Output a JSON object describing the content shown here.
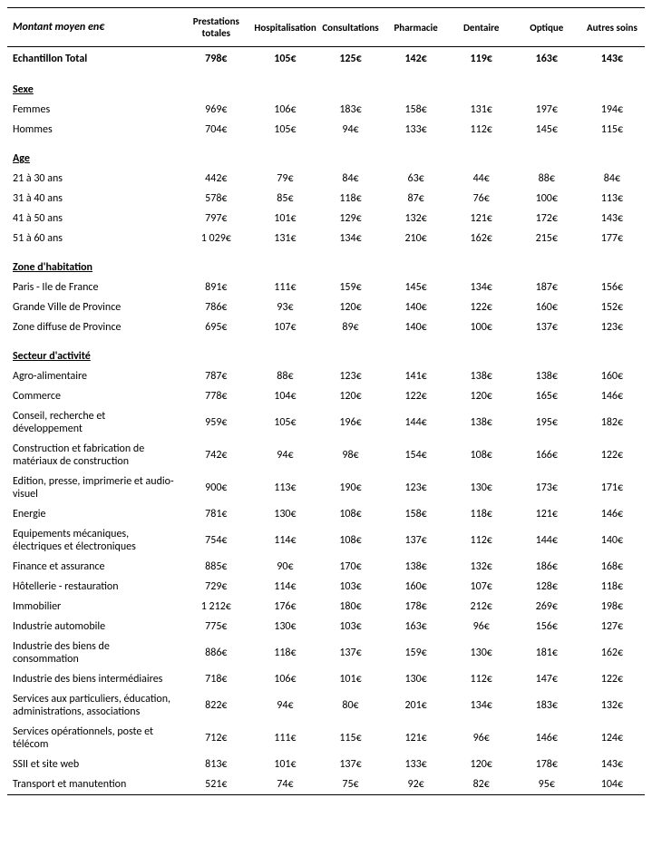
{
  "table": {
    "header_label": "Montant moyen en€",
    "columns": [
      "Prestations totales",
      "Hospitalisation",
      "Consultations",
      "Pharmacie",
      "Dentaire",
      "Optique",
      "Autres soins"
    ],
    "total_row": {
      "label": "Echantillon Total",
      "values": [
        "798€",
        "105€",
        "125€",
        "142€",
        "119€",
        "163€",
        "143€"
      ]
    },
    "sections": [
      {
        "title": "Sexe",
        "rows": [
          {
            "label": "Femmes",
            "values": [
              "969€",
              "106€",
              "183€",
              "158€",
              "131€",
              "197€",
              "194€"
            ]
          },
          {
            "label": "Hommes",
            "values": [
              "704€",
              "105€",
              "94€",
              "133€",
              "112€",
              "145€",
              "115€"
            ]
          }
        ]
      },
      {
        "title": "Age",
        "rows": [
          {
            "label": "21 à 30 ans",
            "values": [
              "442€",
              "79€",
              "84€",
              "63€",
              "44€",
              "88€",
              "84€"
            ]
          },
          {
            "label": "31 à 40 ans",
            "values": [
              "578€",
              "85€",
              "118€",
              "87€",
              "76€",
              "100€",
              "113€"
            ]
          },
          {
            "label": "41 à 50 ans",
            "values": [
              "797€",
              "101€",
              "129€",
              "132€",
              "121€",
              "172€",
              "143€"
            ]
          },
          {
            "label": "51 à 60 ans",
            "values": [
              "1 029€",
              "131€",
              "134€",
              "210€",
              "162€",
              "215€",
              "177€"
            ]
          }
        ]
      },
      {
        "title": "Zone d'habitation",
        "rows": [
          {
            "label": "Paris - Ile de France",
            "values": [
              "891€",
              "111€",
              "159€",
              "145€",
              "134€",
              "187€",
              "156€"
            ]
          },
          {
            "label": "Grande Ville de Province",
            "values": [
              "786€",
              "93€",
              "120€",
              "140€",
              "122€",
              "160€",
              "152€"
            ]
          },
          {
            "label": "Zone diffuse de Province",
            "values": [
              "695€",
              "107€",
              "89€",
              "140€",
              "100€",
              "137€",
              "123€"
            ]
          }
        ]
      },
      {
        "title": "Secteur d'activité",
        "rows": [
          {
            "label": "Agro-alimentaire",
            "values": [
              "787€",
              "88€",
              "123€",
              "141€",
              "138€",
              "138€",
              "160€"
            ]
          },
          {
            "label": "Commerce",
            "values": [
              "778€",
              "104€",
              "120€",
              "122€",
              "120€",
              "165€",
              "146€"
            ]
          },
          {
            "label": "Conseil, recherche et développement",
            "values": [
              "959€",
              "105€",
              "196€",
              "144€",
              "138€",
              "195€",
              "182€"
            ]
          },
          {
            "label": "Construction et fabrication de matériaux de construction",
            "values": [
              "742€",
              "94€",
              "98€",
              "154€",
              "108€",
              "166€",
              "122€"
            ]
          },
          {
            "label": "Edition, presse, imprimerie et audio-visuel",
            "values": [
              "900€",
              "113€",
              "190€",
              "123€",
              "130€",
              "173€",
              "171€"
            ]
          },
          {
            "label": "Energie",
            "values": [
              "781€",
              "130€",
              "108€",
              "158€",
              "118€",
              "121€",
              "146€"
            ]
          },
          {
            "label": "Equipements mécaniques, électriques et électroniques",
            "values": [
              "754€",
              "114€",
              "108€",
              "137€",
              "112€",
              "144€",
              "140€"
            ]
          },
          {
            "label": "Finance et assurance",
            "values": [
              "885€",
              "90€",
              "170€",
              "138€",
              "132€",
              "186€",
              "168€"
            ]
          },
          {
            "label": "Hôtellerie - restauration",
            "values": [
              "729€",
              "114€",
              "103€",
              "160€",
              "107€",
              "128€",
              "118€"
            ]
          },
          {
            "label": "Immobilier",
            "values": [
              "1 212€",
              "176€",
              "180€",
              "178€",
              "212€",
              "269€",
              "198€"
            ]
          },
          {
            "label": "Industrie automobile",
            "values": [
              "775€",
              "130€",
              "103€",
              "163€",
              "96€",
              "156€",
              "127€"
            ]
          },
          {
            "label": "Industrie des biens de consommation",
            "values": [
              "886€",
              "118€",
              "137€",
              "159€",
              "130€",
              "181€",
              "162€"
            ]
          },
          {
            "label": "Industrie des biens intermédiaires",
            "values": [
              "718€",
              "106€",
              "101€",
              "130€",
              "112€",
              "147€",
              "122€"
            ]
          },
          {
            "label": "Services aux particuliers, éducation, administrations, associations",
            "values": [
              "822€",
              "94€",
              "80€",
              "201€",
              "134€",
              "183€",
              "132€"
            ]
          },
          {
            "label": "Services opérationnels, poste et télécom",
            "values": [
              "712€",
              "111€",
              "115€",
              "121€",
              "96€",
              "146€",
              "124€"
            ]
          },
          {
            "label": "SSII et site web",
            "values": [
              "813€",
              "101€",
              "137€",
              "133€",
              "120€",
              "178€",
              "143€"
            ]
          },
          {
            "label": "Transport et manutention",
            "values": [
              "521€",
              "74€",
              "75€",
              "92€",
              "82€",
              "95€",
              "104€"
            ]
          }
        ]
      }
    ]
  }
}
